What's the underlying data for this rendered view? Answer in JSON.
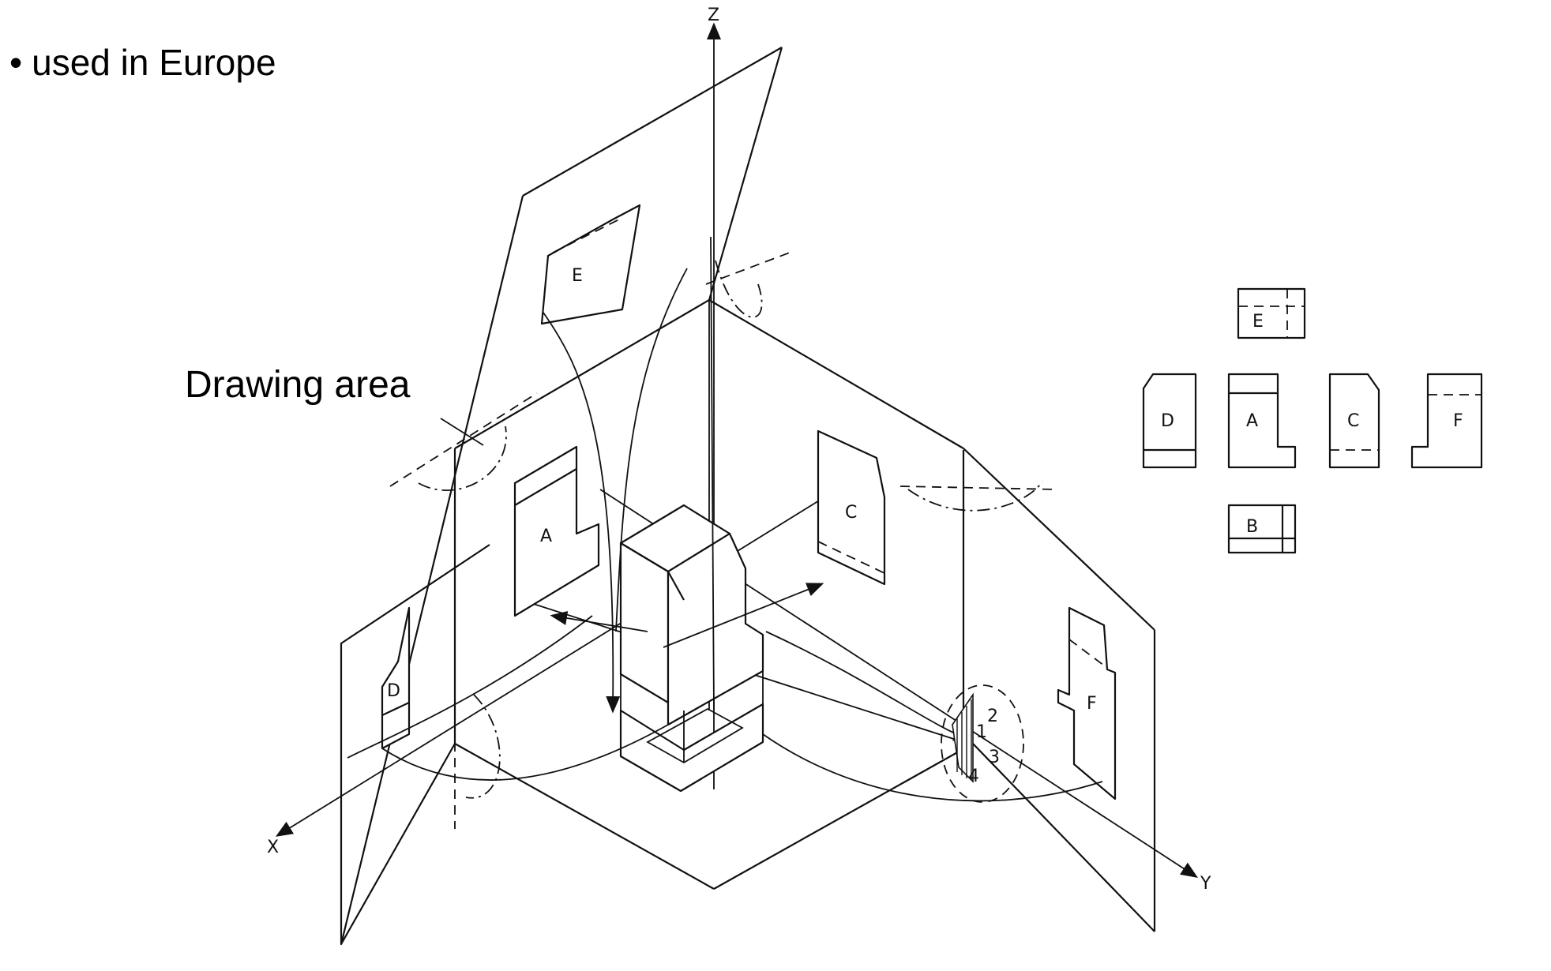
{
  "bullet": {
    "marker": "•",
    "text": "used in Europe"
  },
  "callout": {
    "text": "Drawing area"
  },
  "axes": {
    "x": "X",
    "y": "Y",
    "z": "Z"
  },
  "views": {
    "a": "A",
    "b": "B",
    "c": "C",
    "d": "D",
    "e": "E",
    "f": "F"
  },
  "quadrants": {
    "q1": "1",
    "q2": "2",
    "q3": "3",
    "q4": "4"
  }
}
